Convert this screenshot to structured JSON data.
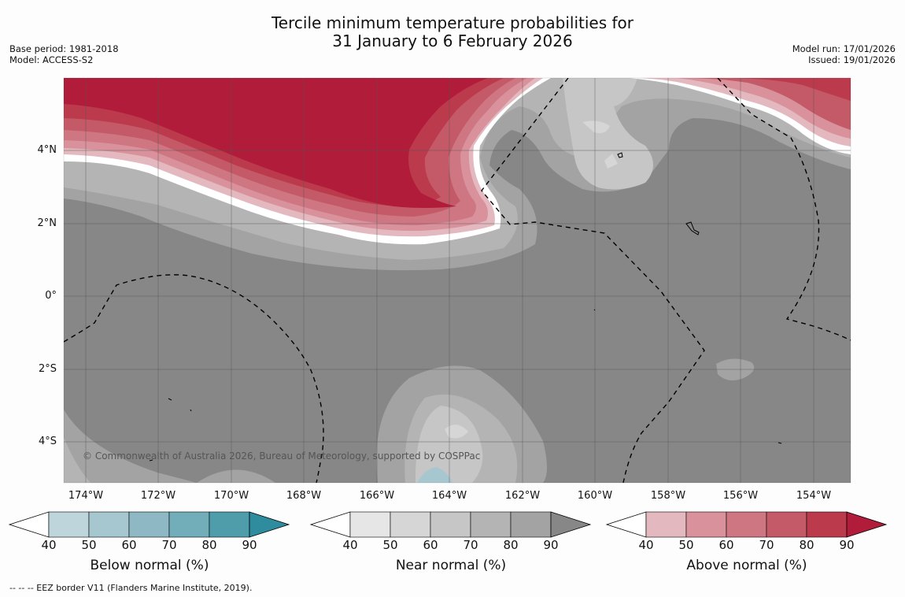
{
  "title": {
    "line1": "Tercile minimum temperature probabilities for",
    "line2": "31 January to 6 February 2026"
  },
  "meta": {
    "base_period": "Base period: 1981-2018",
    "model": "Model: ACCESS-S2",
    "model_run": "Model run: 17/01/2026",
    "issued": "Issued: 19/01/2026"
  },
  "axes": {
    "lat_labels": [
      "4°N",
      "2°N",
      "0°",
      "2°S",
      "4°S"
    ],
    "lon_labels": [
      "174°W",
      "172°W",
      "170°W",
      "168°W",
      "166°W",
      "164°W",
      "162°W",
      "160°W",
      "158°W",
      "156°W",
      "154°W"
    ]
  },
  "copyright": "© Commonwealth of Australia 2026, Bureau of Meteorology, supported by COSPPac",
  "colorbars": [
    {
      "title": "Below normal (%)",
      "ticks": [
        "40",
        "50",
        "60",
        "70",
        "80",
        "90"
      ],
      "colors": [
        "#bfd5dc",
        "#a6c7cf",
        "#8db8c4",
        "#72adba",
        "#4f9dab",
        "#2e8c9e"
      ]
    },
    {
      "title": "Near normal (%)",
      "ticks": [
        "40",
        "50",
        "60",
        "70",
        "80",
        "90"
      ],
      "colors": [
        "#e6e6e6",
        "#d6d6d6",
        "#c6c6c6",
        "#b4b4b4",
        "#a3a3a3",
        "#878787"
      ]
    },
    {
      "title": "Above normal (%)",
      "ticks": [
        "40",
        "50",
        "60",
        "70",
        "80",
        "90"
      ],
      "colors": [
        "#e3b8bf",
        "#d9919c",
        "#ce7782",
        "#c45a67",
        "#bb3a4c",
        "#b01c3a"
      ]
    }
  ],
  "footer": "--  --  -- EEZ border V11 (Flanders Marine Institute, 2019)."
}
